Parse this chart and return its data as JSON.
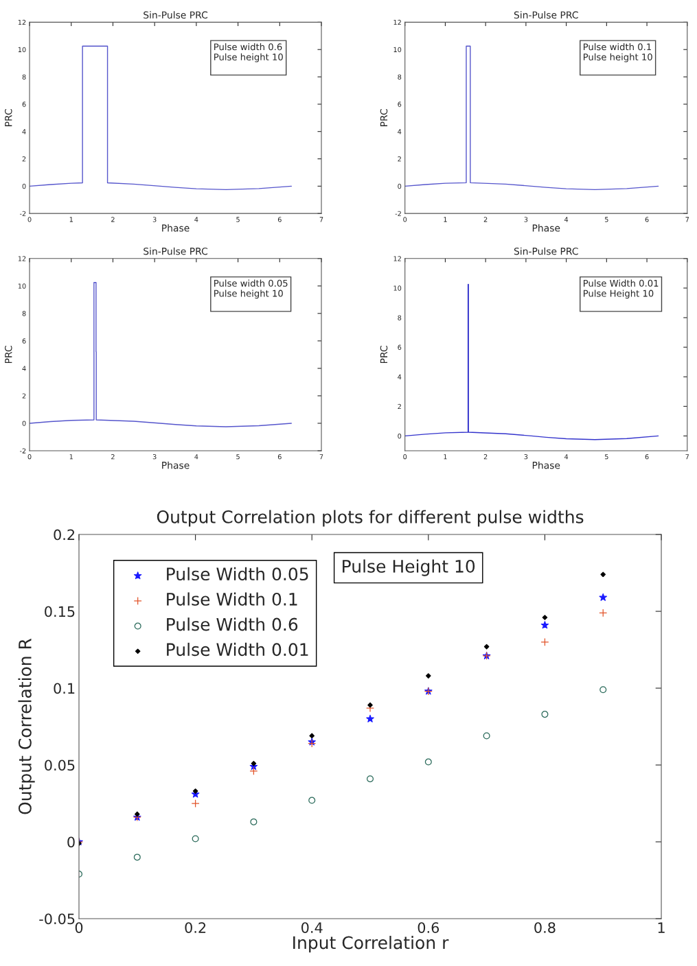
{
  "chart_data": [
    {
      "type": "line",
      "title": "Sin-Pulse PRC",
      "xlabel": "Phase",
      "ylabel": "PRC",
      "annotations": [
        "Pulse width 0.6\nPulse height 10"
      ],
      "xlim": [
        0,
        7
      ],
      "xticks": [
        0,
        1,
        2,
        3,
        4,
        5,
        6,
        7
      ],
      "ylim": [
        -2,
        12
      ],
      "yticks": [
        -2,
        0,
        2,
        4,
        6,
        8,
        10,
        12
      ],
      "grid": false,
      "series": [
        {
          "color": "#5555cc",
          "x": [
            0,
            0.5,
            1,
            1.27,
            1.27,
            1.87,
            1.87,
            2.5,
            3.14,
            3.5,
            4,
            4.71,
            5.5,
            6.28
          ],
          "values": [
            0,
            0.12,
            0.21,
            0.24,
            10.25,
            10.25,
            0.24,
            0.15,
            0,
            -0.09,
            -0.19,
            -0.25,
            -0.18,
            0
          ]
        }
      ]
    },
    {
      "type": "line",
      "title": "Sin-Pulse PRC",
      "xlabel": "Phase",
      "ylabel": "PRC",
      "annotations": [
        "Pulse width 0.1\nPulse height 10"
      ],
      "xlim": [
        0,
        7
      ],
      "xticks": [
        0,
        1,
        2,
        3,
        4,
        5,
        6,
        7
      ],
      "ylim": [
        -2,
        12
      ],
      "yticks": [
        -2,
        0,
        2,
        4,
        6,
        8,
        10,
        12
      ],
      "grid": false,
      "series": [
        {
          "color": "#5555cc",
          "x": [
            0,
            0.5,
            1,
            1.52,
            1.52,
            1.62,
            1.62,
            2.5,
            3.14,
            3.5,
            4,
            4.71,
            5.5,
            6.28
          ],
          "values": [
            0,
            0.12,
            0.21,
            0.25,
            10.25,
            10.25,
            0.25,
            0.15,
            0,
            -0.09,
            -0.19,
            -0.25,
            -0.18,
            0
          ]
        }
      ]
    },
    {
      "type": "line",
      "title": "Sin-Pulse PRC",
      "xlabel": "Phase",
      "ylabel": "PRC",
      "annotations": [
        "Pulse width 0.05\nPulse height 10"
      ],
      "xlim": [
        0,
        7
      ],
      "xticks": [
        0,
        1,
        2,
        3,
        4,
        5,
        6,
        7
      ],
      "ylim": [
        -2,
        12
      ],
      "yticks": [
        -2,
        0,
        2,
        4,
        6,
        8,
        10,
        12
      ],
      "grid": false,
      "series": [
        {
          "color": "#5555cc",
          "x": [
            0,
            0.5,
            1,
            1.545,
            1.545,
            1.595,
            1.595,
            1.6,
            1.6,
            2.5,
            3.14,
            3.5,
            4,
            4.71,
            5.5,
            6.28
          ],
          "values": [
            0,
            0.12,
            0.21,
            0.25,
            10.25,
            10.25,
            5.2,
            5.2,
            0.25,
            0.15,
            0,
            -0.09,
            -0.19,
            -0.25,
            -0.18,
            0
          ]
        }
      ]
    },
    {
      "type": "line",
      "title": "Sin-Pulse PRC",
      "xlabel": "Phase",
      "ylabel": "PRC",
      "annotations": [
        "Pulse Width 0.01\nPulse Height 10"
      ],
      "xlim": [
        0,
        7
      ],
      "xticks": [
        0,
        1,
        2,
        3,
        4,
        5,
        6,
        7
      ],
      "ylim": [
        -1,
        12
      ],
      "yticks": [
        0,
        2,
        4,
        6,
        8,
        10,
        12
      ],
      "grid": false,
      "series": [
        {
          "color": "#3333cc",
          "x": [
            0,
            0.5,
            1,
            1.565,
            1.565,
            1.575,
            1.575,
            2.5,
            3.14,
            3.5,
            4,
            4.71,
            5.5,
            6.28
          ],
          "values": [
            0,
            0.12,
            0.21,
            0.25,
            10.25,
            10.25,
            0.25,
            0.15,
            0,
            -0.09,
            -0.19,
            -0.25,
            -0.18,
            0
          ]
        }
      ]
    },
    {
      "type": "scatter",
      "title": "Output Correlation plots for different pulse widths",
      "xlabel": "Input Correlation r",
      "ylabel": "Output Correlation R",
      "annotations": [
        "Pulse Height 10"
      ],
      "x": [
        0,
        0.1,
        0.2,
        0.3,
        0.4,
        0.5,
        0.6,
        0.7,
        0.8,
        0.9
      ],
      "xlim": [
        0,
        1
      ],
      "xticks": [
        0,
        0.2,
        0.4,
        0.6,
        0.8,
        1
      ],
      "ylim": [
        -0.05,
        0.2
      ],
      "yticks": [
        -0.05,
        0,
        0.05,
        0.1,
        0.15,
        0.2
      ],
      "grid": false,
      "legend": "top left",
      "series": [
        {
          "name": "Pulse Width 0.05",
          "color": "#1a1aff",
          "marker": "star",
          "values": [
            0,
            0.016,
            0.031,
            0.049,
            0.065,
            0.08,
            0.098,
            0.121,
            0.141,
            0.159
          ]
        },
        {
          "name": "Pulse Width 0.1",
          "color": "#e2542a",
          "marker": "cross",
          "values": [
            0,
            0.016,
            0.025,
            0.046,
            0.064,
            0.087,
            0.098,
            0.121,
            0.13,
            0.149
          ]
        },
        {
          "name": "Pulse Width 0.6",
          "color": "#2a6a5a",
          "marker": "circle",
          "values": [
            -0.021,
            -0.01,
            0.002,
            0.013,
            0.027,
            0.041,
            0.052,
            0.069,
            0.083,
            0.099
          ]
        },
        {
          "name": "Pulse Width 0.01",
          "color": "#000000",
          "marker": "diamond",
          "values": [
            -0.001,
            0.018,
            0.033,
            0.051,
            0.069,
            0.089,
            0.108,
            0.127,
            0.146,
            0.174
          ]
        }
      ]
    }
  ]
}
